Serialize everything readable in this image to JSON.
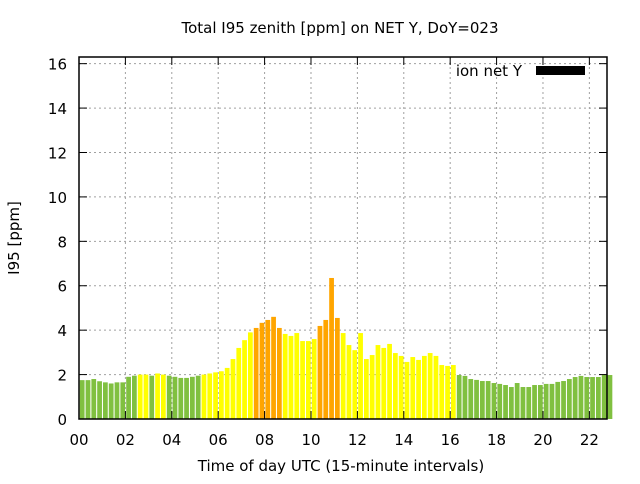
{
  "chart_data": {
    "type": "bar",
    "title": "Total I95 zenith [ppm] on NET Y, DoY=023",
    "xlabel": "Time of day UTC (15-minute intervals)",
    "ylabel": "I95 [ppm]",
    "xlim": [
      0,
      22.76
    ],
    "ylim": [
      0,
      16.3
    ],
    "x_step_hours": 0.25,
    "x_ticks": [
      0,
      2,
      4,
      6,
      8,
      10,
      12,
      14,
      16,
      18,
      20,
      22
    ],
    "x_tick_labels": [
      "00",
      "02",
      "04",
      "06",
      "08",
      "10",
      "12",
      "14",
      "16",
      "18",
      "20",
      "22"
    ],
    "y_ticks": [
      0,
      2,
      4,
      6,
      8,
      10,
      12,
      14,
      16
    ],
    "y_tick_labels": [
      "0",
      "2",
      "4",
      "6",
      "8",
      "10",
      "12",
      "14",
      "16"
    ],
    "grid": true,
    "legend": {
      "label": "ion net Y",
      "placement": "top-right",
      "color": "#000000"
    },
    "colors": {
      "g": "#80c040",
      "y": "#ffff00",
      "o": "#ffa500"
    },
    "values": [
      1.75,
      1.75,
      1.8,
      1.7,
      1.65,
      1.6,
      1.65,
      1.65,
      1.9,
      1.95,
      2.0,
      2.0,
      1.95,
      2.05,
      2.0,
      1.95,
      1.9,
      1.85,
      1.85,
      1.9,
      1.95,
      2.0,
      2.05,
      2.1,
      2.15,
      2.3,
      2.7,
      3.2,
      3.55,
      3.9,
      4.1,
      4.33,
      4.46,
      4.6,
      4.1,
      3.83,
      3.74,
      3.87,
      3.51,
      3.51,
      3.6,
      4.19,
      4.46,
      6.35,
      4.55,
      3.87,
      3.33,
      3.1,
      3.87,
      2.7,
      2.88,
      3.33,
      3.2,
      3.38,
      2.97,
      2.84,
      2.57,
      2.79,
      2.66,
      2.84,
      2.97,
      2.84,
      2.43,
      2.39,
      2.43,
      1.98,
      1.94,
      1.8,
      1.76,
      1.71,
      1.71,
      1.62,
      1.58,
      1.53,
      1.44,
      1.62,
      1.44,
      1.44,
      1.53,
      1.53,
      1.58,
      1.58,
      1.67,
      1.71,
      1.8,
      1.89,
      1.94,
      1.89,
      1.89,
      1.89,
      1.98,
      1.98
    ],
    "bar_colors": [
      "g",
      "g",
      "g",
      "g",
      "g",
      "g",
      "g",
      "g",
      "g",
      "g",
      "y",
      "y",
      "g",
      "y",
      "y",
      "g",
      "g",
      "g",
      "g",
      "g",
      "g",
      "y",
      "y",
      "y",
      "y",
      "y",
      "y",
      "y",
      "y",
      "y",
      "o",
      "o",
      "o",
      "o",
      "o",
      "y",
      "y",
      "y",
      "y",
      "y",
      "y",
      "o",
      "o",
      "o",
      "o",
      "y",
      "y",
      "y",
      "y",
      "y",
      "y",
      "y",
      "y",
      "y",
      "y",
      "y",
      "y",
      "y",
      "y",
      "y",
      "y",
      "y",
      "y",
      "y",
      "y",
      "g",
      "g",
      "g",
      "g",
      "g",
      "g",
      "g",
      "g",
      "g",
      "g",
      "g",
      "g",
      "g",
      "g",
      "g",
      "g",
      "g",
      "g",
      "g",
      "g",
      "g",
      "g",
      "g",
      "g",
      "g",
      "g",
      "g"
    ]
  }
}
